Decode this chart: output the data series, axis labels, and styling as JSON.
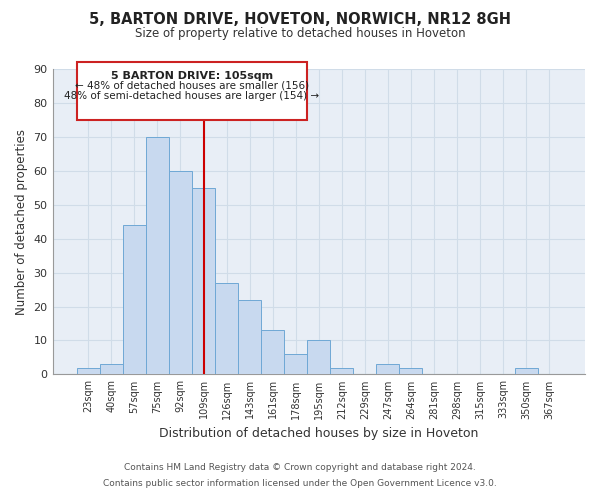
{
  "title": "5, BARTON DRIVE, HOVETON, NORWICH, NR12 8GH",
  "subtitle": "Size of property relative to detached houses in Hoveton",
  "xlabel": "Distribution of detached houses by size in Hoveton",
  "ylabel": "Number of detached properties",
  "bar_labels": [
    "23sqm",
    "40sqm",
    "57sqm",
    "75sqm",
    "92sqm",
    "109sqm",
    "126sqm",
    "143sqm",
    "161sqm",
    "178sqm",
    "195sqm",
    "212sqm",
    "229sqm",
    "247sqm",
    "264sqm",
    "281sqm",
    "298sqm",
    "315sqm",
    "333sqm",
    "350sqm",
    "367sqm"
  ],
  "bar_heights": [
    2,
    3,
    44,
    70,
    60,
    55,
    27,
    22,
    13,
    6,
    10,
    2,
    0,
    3,
    2,
    0,
    0,
    0,
    0,
    2,
    0
  ],
  "bar_color": "#c8d9ef",
  "bar_edge_color": "#6fa8d5",
  "vline_x": 5.0,
  "vline_color": "#cc0000",
  "ylim": [
    0,
    90
  ],
  "yticks": [
    0,
    10,
    20,
    30,
    40,
    50,
    60,
    70,
    80,
    90
  ],
  "annotation_title": "5 BARTON DRIVE: 105sqm",
  "annotation_line1": "← 48% of detached houses are smaller (156)",
  "annotation_line2": "48% of semi-detached houses are larger (154) →",
  "footer1": "Contains HM Land Registry data © Crown copyright and database right 2024.",
  "footer2": "Contains public sector information licensed under the Open Government Licence v3.0.",
  "grid_color": "#d0dce8",
  "background_color": "#e8eef6"
}
